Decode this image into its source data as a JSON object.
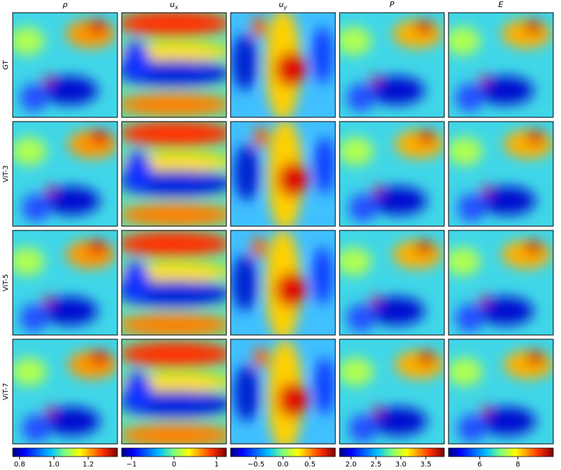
{
  "chart_data": {
    "type": "image-grid",
    "columns": [
      {
        "symbol": "ρ",
        "colorbar": {
          "lim": [
            0.76,
            1.37
          ],
          "ticks": [
            0.8,
            {
              "value": 1,
              "label": "1.0"
            },
            1.2
          ]
        }
      },
      {
        "symbol": "u",
        "subscript": "x",
        "colorbar": {
          "lim": [
            -1.23,
            1.23
          ],
          "ticks": [
            {
              "value": -1,
              "label": "−1"
            },
            0,
            1
          ]
        }
      },
      {
        "symbol": "u",
        "subscript": "y",
        "colorbar": {
          "lim": [
            -0.97,
            0.97
          ],
          "ticks": [
            {
              "value": -0.5,
              "label": "−0.5"
            },
            {
              "value": 0,
              "label": "0.0"
            },
            0.5
          ]
        }
      },
      {
        "symbol": "P",
        "colorbar": {
          "lim": [
            1.77,
            3.87
          ],
          "ticks": [
            {
              "value": 2,
              "label": "2.0"
            },
            2.5,
            {
              "value": 3,
              "label": "3.0"
            },
            3.5
          ]
        }
      },
      {
        "symbol": "E",
        "colorbar": {
          "lim": [
            4.37,
            9.85
          ],
          "ticks": [
            6,
            8
          ]
        }
      }
    ],
    "rows": [
      "GT",
      "ViT-3",
      "ViT-5",
      "ViT-7"
    ]
  }
}
